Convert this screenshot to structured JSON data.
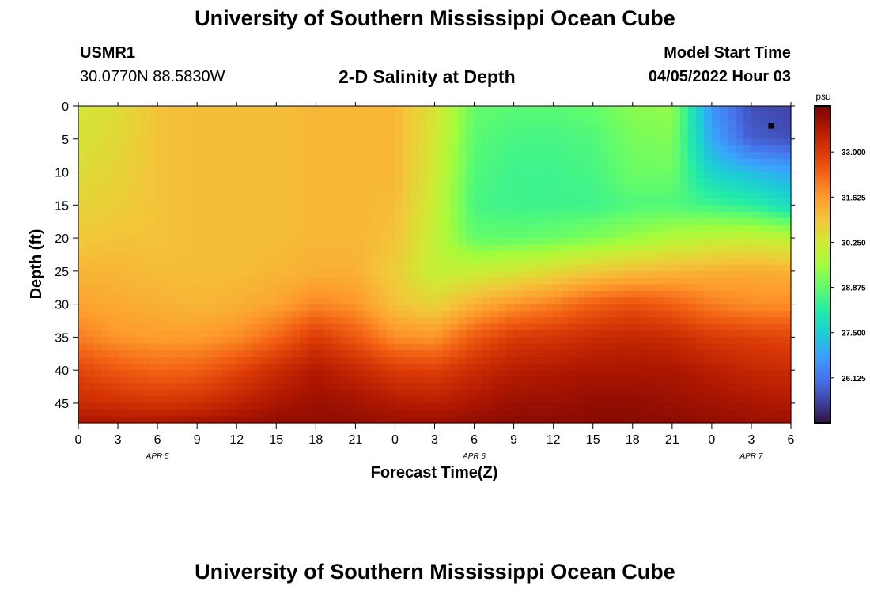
{
  "header": {
    "title": "University of Southern Mississippi Ocean Cube",
    "station_id": "USMR1",
    "coordinates": "30.0770N  88.5830W",
    "plot_title": "2-D Salinity at Depth",
    "start_label": "Model Start Time",
    "start_value": "04/05/2022 Hour 03"
  },
  "footer": {
    "title": "University of Southern Mississippi Ocean Cube"
  },
  "chart_data": {
    "type": "heatmap",
    "title": "2-D Salinity at Depth",
    "xlabel": "Forecast Time(Z)",
    "ylabel": "Depth (ft)",
    "x_hours_from_apr5_00z": [
      0,
      54
    ],
    "x_tick_labels": [
      "0",
      "3",
      "6",
      "9",
      "12",
      "15",
      "18",
      "21",
      "0",
      "3",
      "6",
      "9",
      "12",
      "15",
      "18",
      "21",
      "0",
      "3",
      "6"
    ],
    "date_labels": [
      {
        "label": "APR 5",
        "at_tick": 2
      },
      {
        "label": "APR 6",
        "at_tick": 10
      },
      {
        "label": "APR 7",
        "at_tick": 17
      }
    ],
    "y_ticks": [
      0,
      5,
      10,
      15,
      20,
      25,
      30,
      35,
      40,
      45
    ],
    "ylim": [
      0,
      48
    ],
    "colorbar": {
      "unit": "psu",
      "ticks": [
        "33.000",
        "31.625",
        "30.250",
        "28.875",
        "27.500",
        "26.125"
      ],
      "min": 24.75,
      "max": 34.4
    },
    "colors": {
      "colormap": [
        "#30123b",
        "#4145ab",
        "#4675ed",
        "#39a2fc",
        "#1bcfd4",
        "#24eca6",
        "#61fc6c",
        "#a4fc3b",
        "#d1e834",
        "#f3c63a",
        "#fe9b2d",
        "#f36315",
        "#d93806",
        "#b11901",
        "#7a0403"
      ]
    },
    "marker": {
      "time_hour": 52.5,
      "depth": 3.0
    },
    "cells_note_depths_ft": [
      0,
      5,
      10,
      15,
      20,
      25,
      30,
      35,
      40,
      45,
      48
    ],
    "cells_times_h": [
      0,
      3,
      6,
      9,
      12,
      15,
      18,
      21,
      24,
      27,
      30,
      33,
      36,
      39,
      42,
      45,
      48,
      51,
      54
    ],
    "values": [
      [
        30.3,
        30.5,
        31.0,
        31.1,
        31.1,
        31.1,
        31.2,
        31.2,
        31.2,
        30.4,
        28.9,
        28.8,
        28.8,
        28.9,
        29.3,
        29.4,
        26.6,
        25.6,
        25.4
      ],
      [
        30.4,
        30.6,
        31.0,
        31.1,
        31.1,
        31.1,
        31.2,
        31.2,
        31.2,
        30.3,
        28.8,
        28.6,
        28.6,
        28.7,
        29.1,
        29.2,
        26.9,
        25.8,
        25.6
      ],
      [
        30.5,
        30.7,
        31.0,
        31.1,
        31.1,
        31.1,
        31.2,
        31.2,
        31.2,
        30.2,
        28.7,
        28.5,
        28.5,
        28.6,
        29.0,
        29.0,
        27.6,
        27.2,
        26.9
      ],
      [
        30.7,
        30.8,
        31.0,
        31.1,
        31.1,
        31.1,
        31.2,
        31.2,
        31.1,
        30.1,
        28.6,
        28.5,
        28.5,
        28.5,
        28.7,
        28.7,
        28.5,
        28.3,
        27.8
      ],
      [
        30.9,
        31.0,
        31.0,
        31.1,
        31.1,
        31.1,
        31.2,
        31.2,
        31.0,
        30.0,
        28.9,
        28.9,
        29.0,
        29.2,
        29.5,
        29.8,
        30.0,
        30.1,
        29.9
      ],
      [
        31.2,
        31.2,
        31.1,
        31.1,
        31.1,
        31.2,
        31.3,
        31.3,
        30.8,
        30.0,
        30.1,
        30.3,
        30.6,
        30.9,
        31.1,
        31.2,
        31.3,
        31.4,
        31.3
      ],
      [
        31.5,
        31.4,
        31.3,
        31.2,
        31.3,
        31.5,
        31.9,
        31.7,
        31.0,
        30.7,
        31.3,
        31.7,
        32.0,
        32.4,
        32.6,
        32.4,
        32.0,
        31.8,
        31.8
      ],
      [
        32.0,
        31.7,
        31.6,
        31.6,
        31.8,
        32.3,
        33.0,
        32.5,
        31.8,
        31.7,
        32.5,
        33.0,
        33.1,
        33.3,
        33.4,
        33.3,
        33.0,
        32.9,
        32.8
      ],
      [
        32.8,
        32.5,
        32.3,
        32.4,
        32.8,
        33.3,
        33.7,
        33.4,
        33.0,
        32.9,
        33.3,
        33.6,
        33.7,
        33.8,
        33.8,
        33.8,
        33.6,
        33.4,
        33.3
      ],
      [
        33.3,
        33.2,
        33.1,
        33.2,
        33.5,
        33.8,
        34.0,
        33.9,
        33.7,
        33.6,
        33.8,
        34.0,
        34.0,
        34.1,
        34.1,
        34.0,
        33.9,
        33.8,
        33.7
      ],
      [
        33.8,
        33.8,
        33.8,
        33.9,
        34.0,
        34.1,
        34.1,
        34.1,
        34.0,
        34.0,
        34.1,
        34.2,
        34.2,
        34.2,
        34.2,
        34.2,
        34.1,
        34.0,
        34.0
      ]
    ]
  }
}
